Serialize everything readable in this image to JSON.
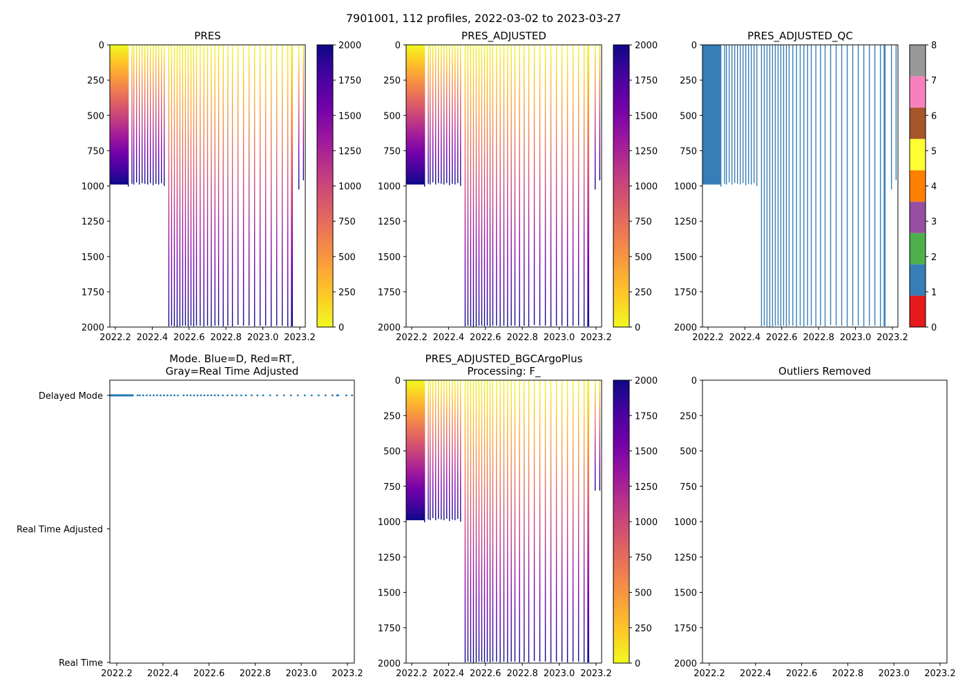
{
  "figure": {
    "suptitle": "7901001, 112 profiles, 2022-03-02 to 2023-03-27",
    "year_ticks": [
      "2022.2",
      "2022.4",
      "2022.6",
      "2022.8",
      "2023.0",
      "2023.2"
    ],
    "depth_ticks": [
      "0",
      "250",
      "500",
      "750",
      "1000",
      "1250",
      "1500",
      "1750",
      "2000"
    ],
    "qc_ticks": [
      "0",
      "1",
      "2",
      "3",
      "4",
      "5",
      "6",
      "7",
      "8"
    ],
    "cbar_ticks": [
      "0",
      "250",
      "500",
      "750",
      "1000",
      "1250",
      "1500",
      "1750",
      "2000"
    ],
    "mode_ticks": [
      "Delayed Mode",
      "Real Time Adjusted",
      "Real Time"
    ]
  },
  "colors": {
    "qc": [
      "#e41a1c",
      "#377eb8",
      "#4daf4a",
      "#984ea3",
      "#ff7f00",
      "#ffff33",
      "#a65628",
      "#f781bf",
      "#999999"
    ],
    "plasma": [
      "#f0f921",
      "#fdca26",
      "#fb9f3a",
      "#ed7953",
      "#d8576b",
      "#bd3786",
      "#9c179e",
      "#7201a8",
      "#46039f",
      "#0d0887"
    ],
    "mode_delayed": "#1f77b4",
    "axes": "#000000"
  },
  "chart_data": [
    {
      "id": "pres",
      "type": "heatmap",
      "title": "PRES",
      "x_label": "",
      "y_label": "",
      "x_range": [
        2022.17,
        2023.23
      ],
      "y_range": [
        2000,
        0
      ],
      "colorbar": {
        "range": [
          0,
          2000
        ],
        "ticks": [
          0,
          250,
          500,
          750,
          1000,
          1250,
          1500,
          1750,
          2000
        ]
      },
      "profiles": [
        {
          "x_range": [
            2022.17,
            2022.27
          ],
          "bottom": 990,
          "note": "dense 1000 dbar profiles, filled"
        },
        {
          "x": 2022.27,
          "bottom": 1005
        },
        {
          "x": 2022.29,
          "bottom": 985
        },
        {
          "x": 2022.3,
          "bottom": 990
        },
        {
          "x": 2022.315,
          "bottom": 975
        },
        {
          "x": 2022.33,
          "bottom": 990
        },
        {
          "x": 2022.345,
          "bottom": 980
        },
        {
          "x": 2022.36,
          "bottom": 985
        },
        {
          "x": 2022.375,
          "bottom": 990
        },
        {
          "x": 2022.39,
          "bottom": 980
        },
        {
          "x": 2022.405,
          "bottom": 995
        },
        {
          "x": 2022.42,
          "bottom": 985
        },
        {
          "x": 2022.435,
          "bottom": 990
        },
        {
          "x": 2022.45,
          "bottom": 980
        },
        {
          "x": 2022.465,
          "bottom": 1000
        },
        {
          "x": 2022.49,
          "bottom": 1995
        },
        {
          "x": 2022.505,
          "bottom": 1990
        },
        {
          "x": 2022.52,
          "bottom": 1995
        },
        {
          "x": 2022.535,
          "bottom": 2000
        },
        {
          "x": 2022.55,
          "bottom": 1995
        },
        {
          "x": 2022.565,
          "bottom": 1990
        },
        {
          "x": 2022.58,
          "bottom": 1990
        },
        {
          "x": 2022.595,
          "bottom": 1995
        },
        {
          "x": 2022.61,
          "bottom": 1990
        },
        {
          "x": 2022.625,
          "bottom": 1995
        },
        {
          "x": 2022.64,
          "bottom": 1990
        },
        {
          "x": 2022.66,
          "bottom": 1990
        },
        {
          "x": 2022.68,
          "bottom": 1995
        },
        {
          "x": 2022.7,
          "bottom": 1990
        },
        {
          "x": 2022.72,
          "bottom": 1995
        },
        {
          "x": 2022.74,
          "bottom": 1990
        },
        {
          "x": 2022.76,
          "bottom": 1990
        },
        {
          "x": 2022.785,
          "bottom": 1995
        },
        {
          "x": 2022.81,
          "bottom": 1990
        },
        {
          "x": 2022.835,
          "bottom": 1995
        },
        {
          "x": 2022.865,
          "bottom": 1985
        },
        {
          "x": 2022.895,
          "bottom": 1990
        },
        {
          "x": 2022.925,
          "bottom": 1990
        },
        {
          "x": 2022.955,
          "bottom": 1995
        },
        {
          "x": 2022.985,
          "bottom": 1990
        },
        {
          "x": 2023.015,
          "bottom": 1990
        },
        {
          "x": 2023.045,
          "bottom": 1995
        },
        {
          "x": 2023.075,
          "bottom": 1990
        },
        {
          "x": 2023.105,
          "bottom": 1990
        },
        {
          "x": 2023.135,
          "bottom": 1995
        },
        {
          "x": 2023.155,
          "bottom": 1995
        },
        {
          "x": 2023.16,
          "bottom": 1995
        },
        {
          "x": 2023.195,
          "bottom": 1025
        },
        {
          "x": 2023.22,
          "bottom": 960
        }
      ]
    },
    {
      "id": "pres_adj",
      "type": "heatmap",
      "title": "PRES_ADJUSTED",
      "x_range": [
        2022.17,
        2023.23
      ],
      "y_range": [
        2000,
        0
      ],
      "colorbar": {
        "range": [
          0,
          2000
        ],
        "ticks": [
          0,
          250,
          500,
          750,
          1000,
          1250,
          1500,
          1750,
          2000
        ]
      },
      "profiles_same_as": "pres"
    },
    {
      "id": "pres_qc",
      "type": "heatmap",
      "title": "PRES_ADJUSTED_QC",
      "x_range": [
        2022.17,
        2023.23
      ],
      "y_range": [
        2000,
        0
      ],
      "qc_value": 1,
      "colorbar": {
        "range": [
          0,
          8
        ],
        "ticks": [
          0,
          1,
          2,
          3,
          4,
          5,
          6,
          7,
          8
        ]
      },
      "profiles_same_as": "pres"
    },
    {
      "id": "mode",
      "type": "scatter",
      "title": "Mode. Blue=D, Red=RT,",
      "title_line2": "Gray=Real Time Adjusted",
      "x_range": [
        2022.17,
        2023.23
      ],
      "y_categories": [
        "Real Time",
        "Real Time Adjusted",
        "Delayed Mode"
      ],
      "series": [
        {
          "name": "D",
          "y": "Delayed Mode",
          "x_same_as": "pres"
        }
      ]
    },
    {
      "id": "bgc",
      "type": "heatmap",
      "title": "PRES_ADJUSTED_BGCArgoPlus",
      "title_line2": "Processing: F_",
      "x_range": [
        2022.17,
        2023.23
      ],
      "y_range": [
        2000,
        0
      ],
      "colorbar": {
        "range": [
          0,
          2000
        ],
        "ticks": [
          0,
          250,
          500,
          750,
          1000,
          1250,
          1500,
          1750,
          2000
        ]
      },
      "profiles_same_as": "pres",
      "overrides": [
        {
          "x": 2023.195,
          "bottom": 780
        },
        {
          "x": 2023.22,
          "bottom": 780
        }
      ]
    },
    {
      "id": "outliers",
      "type": "scatter",
      "title": "Outliers Removed",
      "x_range": [
        2022.17,
        2023.23
      ],
      "y_range": [
        2000,
        0
      ],
      "series": []
    }
  ]
}
